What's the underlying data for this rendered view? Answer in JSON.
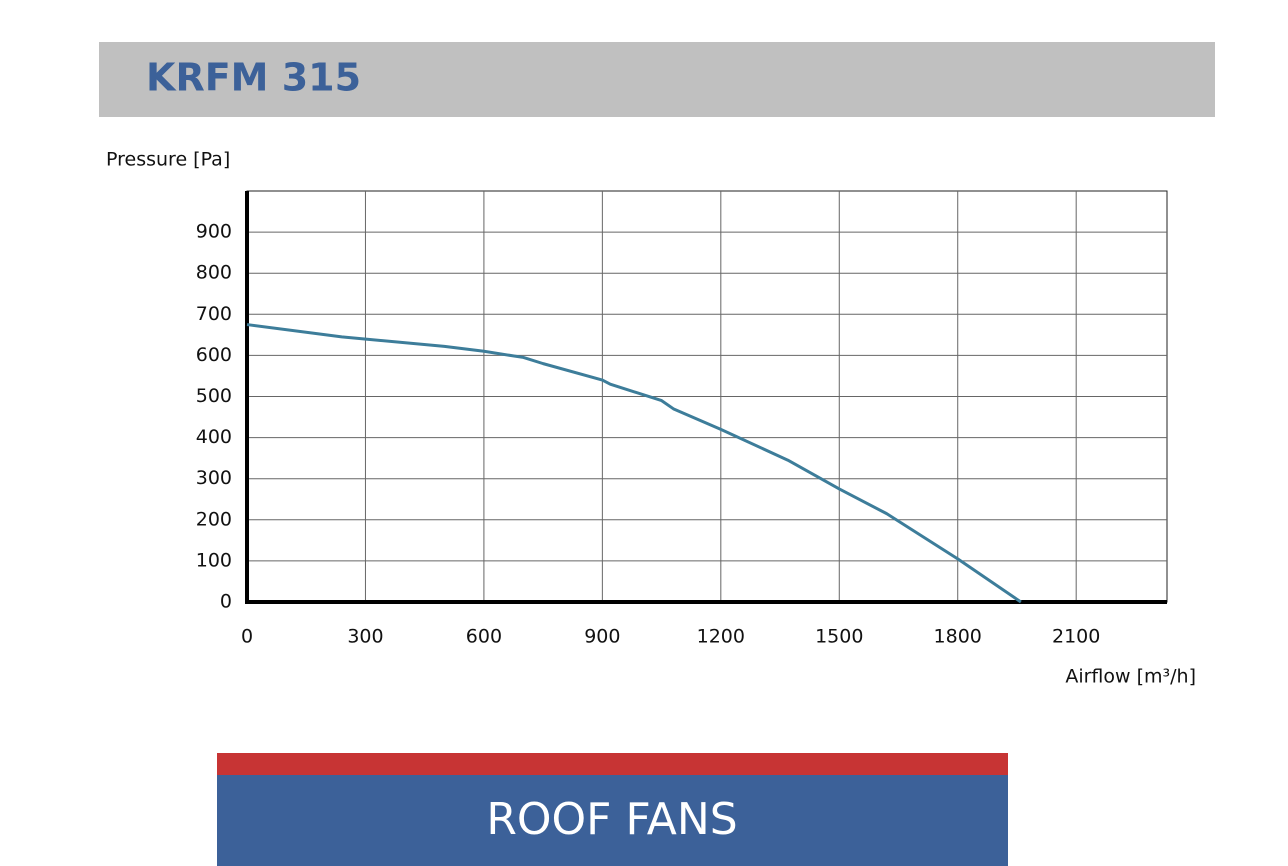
{
  "chart_data": {
    "type": "line",
    "title": "KRFM 315",
    "y_label": "Pressure [Pa]",
    "x_label": "Airflow [m³/h]",
    "x": [
      0,
      240,
      500,
      600,
      700,
      750,
      900,
      920,
      1050,
      1080,
      1200,
      1370,
      1500,
      1620,
      1800,
      1960
    ],
    "series": [
      {
        "color": "#3d7d9a",
        "values": [
          675,
          645,
          622,
          610,
          595,
          580,
          540,
          530,
          490,
          470,
          420,
          345,
          275,
          215,
          105,
          0
        ]
      }
    ],
    "xlim": [
      0,
      2330
    ],
    "ylim": [
      0,
      1000
    ],
    "xticks": [
      0,
      300,
      600,
      900,
      1200,
      1500,
      1800,
      2100
    ],
    "yticks": [
      0,
      100,
      200,
      300,
      400,
      500,
      600,
      700,
      800,
      900
    ],
    "grid": true
  },
  "footer": {
    "label": "ROOF FANS"
  }
}
